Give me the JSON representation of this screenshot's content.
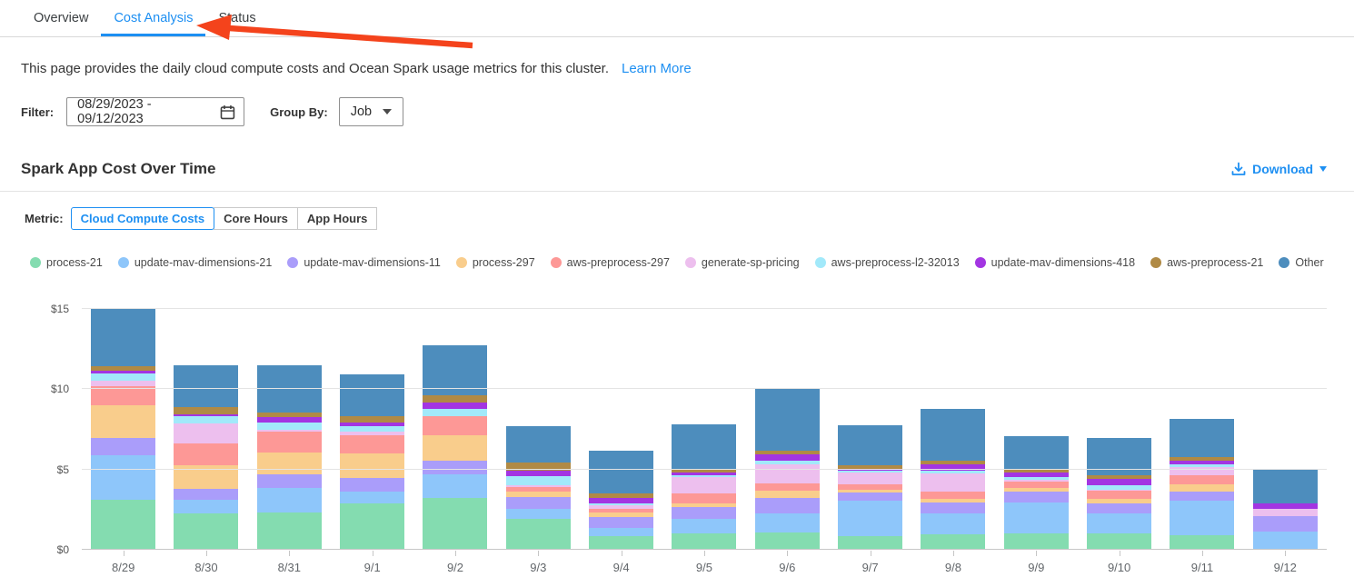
{
  "tabs": [
    {
      "label": "Overview",
      "active": false
    },
    {
      "label": "Cost Analysis",
      "active": true
    },
    {
      "label": "Status",
      "active": false
    }
  ],
  "description": {
    "text": "This page provides the daily cloud compute costs and Ocean Spark usage metrics for this cluster.",
    "learn_more": "Learn More"
  },
  "filter": {
    "label": "Filter:",
    "date_range": "08/29/2023  -  09/12/2023",
    "group_by_label": "Group By:",
    "group_by_value": "Job"
  },
  "section": {
    "title": "Spark App Cost Over Time",
    "download_label": "Download"
  },
  "metric": {
    "label": "Metric:",
    "options": [
      "Cloud Compute Costs",
      "Core Hours",
      "App Hours"
    ],
    "selected": "Cloud Compute Costs"
  },
  "annotation": {
    "type": "red-arrow-pointing-at-cost-analysis-tab",
    "color": "#f4431c"
  },
  "colors": {
    "accent_blue": "#1d8ff2",
    "grid": "#e4e4e4",
    "axis": "#c6c6c6"
  },
  "chart_data": {
    "type": "bar",
    "stacked": true,
    "title": "Spark App Cost Over Time",
    "xlabel": "",
    "ylabel": "",
    "ylim": [
      0,
      15
    ],
    "ytick_values": [
      0,
      5,
      10,
      15
    ],
    "ytick_labels": [
      "$0",
      "$5",
      "$10",
      "$15"
    ],
    "grid": true,
    "legend_position": "top",
    "categories": [
      "8/29",
      "8/30",
      "8/31",
      "9/1",
      "9/2",
      "9/3",
      "9/4",
      "9/5",
      "9/6",
      "9/7",
      "9/8",
      "9/9",
      "9/10",
      "9/11",
      "9/12"
    ],
    "series": [
      {
        "name": "process-21",
        "color": "#84dcb0",
        "values": [
          3.1,
          2.25,
          2.3,
          2.9,
          3.2,
          1.9,
          0.85,
          1.0,
          1.1,
          0.85,
          0.95,
          1.0,
          1.0,
          0.9,
          0.0
        ]
      },
      {
        "name": "update-mav-dimensions-21",
        "color": "#8ec6fa",
        "values": [
          2.8,
          0.85,
          1.55,
          0.75,
          1.5,
          0.65,
          0.5,
          0.9,
          1.15,
          2.2,
          1.3,
          1.95,
          1.25,
          2.15,
          1.15
        ]
      },
      {
        "name": "update-mav-dimensions-11",
        "color": "#aa9dfa",
        "values": [
          1.05,
          0.7,
          0.85,
          0.85,
          0.85,
          0.75,
          0.7,
          0.75,
          0.95,
          0.5,
          0.7,
          0.65,
          0.65,
          0.55,
          0.95
        ]
      },
      {
        "name": "process-297",
        "color": "#f9cd8c",
        "values": [
          2.05,
          1.45,
          1.35,
          1.5,
          1.6,
          0.3,
          0.25,
          0.25,
          0.5,
          0.2,
          0.25,
          0.25,
          0.25,
          0.5,
          0.0
        ]
      },
      {
        "name": "aws-preprocess-297",
        "color": "#fd9896",
        "values": [
          1.2,
          1.4,
          1.3,
          1.15,
          1.15,
          0.3,
          0.25,
          0.6,
          0.45,
          0.35,
          0.45,
          0.4,
          0.55,
          0.55,
          0.0
        ]
      },
      {
        "name": "generate-sp-pricing",
        "color": "#edbfee",
        "values": [
          0.35,
          1.2,
          0.15,
          0.2,
          0.0,
          0.1,
          0.2,
          1.05,
          1.2,
          0.7,
          1.1,
          0.1,
          0.05,
          0.5,
          0.45
        ]
      },
      {
        "name": "aws-preprocess-l2-32013",
        "color": "#a2e9fa",
        "values": [
          0.45,
          0.45,
          0.4,
          0.35,
          0.45,
          0.6,
          0.15,
          0.1,
          0.2,
          0.15,
          0.2,
          0.2,
          0.25,
          0.2,
          0.0
        ]
      },
      {
        "name": "update-mav-dimensions-418",
        "color": "#a335e2",
        "values": [
          0.15,
          0.15,
          0.35,
          0.2,
          0.45,
          0.3,
          0.35,
          0.15,
          0.4,
          0.1,
          0.35,
          0.25,
          0.4,
          0.2,
          0.35
        ]
      },
      {
        "name": "aws-preprocess-21",
        "color": "#b08a45",
        "values": [
          0.3,
          0.45,
          0.3,
          0.4,
          0.45,
          0.55,
          0.25,
          0.25,
          0.25,
          0.2,
          0.25,
          0.2,
          0.25,
          0.2,
          0.0
        ]
      },
      {
        "name": "Other",
        "color": "#4d8dbd",
        "values": [
          3.6,
          2.6,
          2.95,
          2.6,
          3.1,
          2.25,
          2.65,
          2.75,
          3.8,
          2.5,
          3.25,
          2.1,
          2.3,
          2.4,
          2.15
        ]
      }
    ]
  }
}
